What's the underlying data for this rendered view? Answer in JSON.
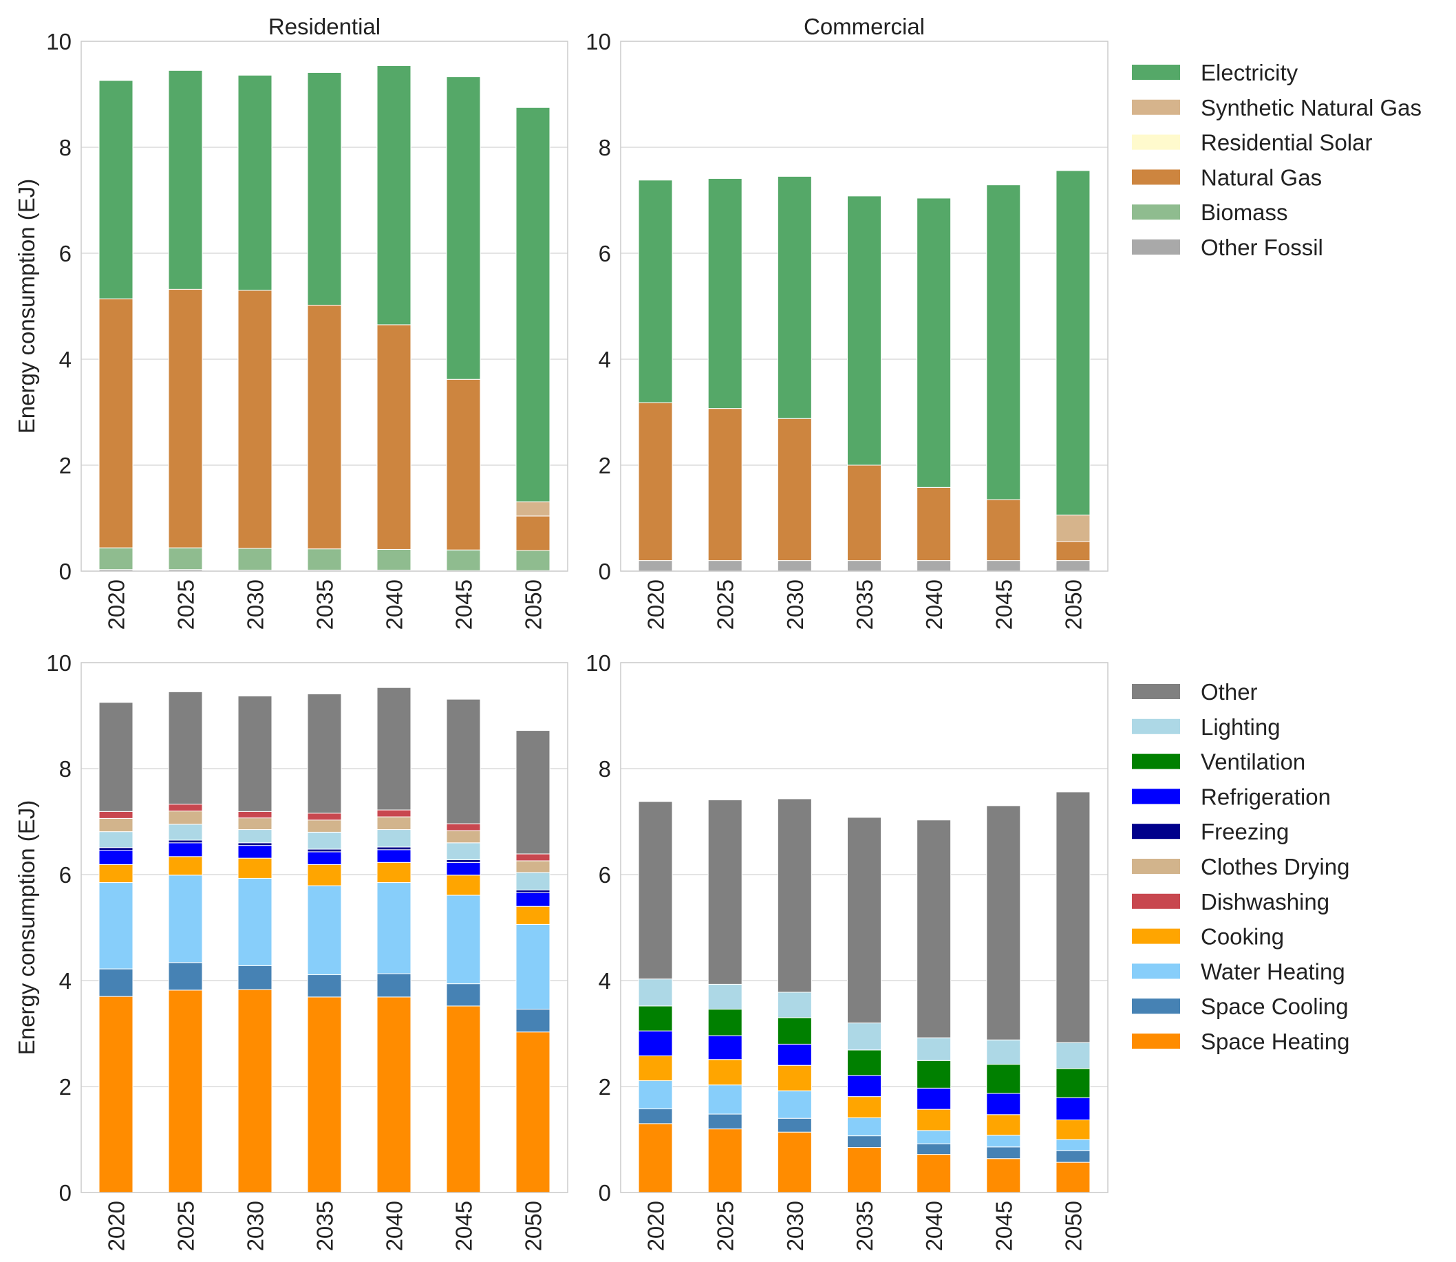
{
  "colors": {
    "Electricity": "#55a868",
    "Synthetic Natural Gas": "#d6b48c",
    "Residential Solar": "#fffacd",
    "Natural Gas": "#cd853f",
    "Biomass": "#8fbc8f",
    "Other Fossil": "#a9a9a9",
    "Other": "#808080",
    "Lighting": "#add8e6",
    "Ventilation": "#008000",
    "Refrigeration": "#0000ff",
    "Freezing": "#00008b",
    "Clothes Drying": "#d2b48c",
    "Dishwashing": "#c8474f",
    "Cooking": "#ffa500",
    "Water Heating": "#87cefa",
    "Space Cooling": "#4682b4",
    "Space Heating": "#ff8c00"
  },
  "legends": [
    {
      "entries": [
        "Electricity",
        "Synthetic Natural Gas",
        "Residential Solar",
        "Natural Gas",
        "Biomass",
        "Other Fossil"
      ]
    },
    {
      "entries": [
        "Other",
        "Lighting",
        "Ventilation",
        "Refrigeration",
        "Freezing",
        "Clothes Drying",
        "Dishwashing",
        "Cooking",
        "Water Heating",
        "Space Cooling",
        "Space Heating"
      ]
    }
  ],
  "chart_data": [
    {
      "type": "bar",
      "stacked": true,
      "title": "Residential",
      "ylabel": "Energy consumption (EJ)",
      "ylim": [
        0,
        10
      ],
      "yticks": [
        "0",
        "2",
        "4",
        "6",
        "8",
        "10"
      ],
      "categories": [
        "2020",
        "2025",
        "2030",
        "2035",
        "2040",
        "2045",
        "2050"
      ],
      "series": [
        {
          "name": "Other Fossil",
          "values": [
            0.03,
            0.03,
            0.02,
            0.02,
            0.02,
            0.01,
            0.01
          ]
        },
        {
          "name": "Biomass",
          "values": [
            0.41,
            0.41,
            0.41,
            0.4,
            0.39,
            0.39,
            0.38
          ]
        },
        {
          "name": "Natural Gas",
          "values": [
            4.7,
            4.88,
            4.87,
            4.6,
            4.24,
            3.22,
            0.65
          ]
        },
        {
          "name": "Residential Solar",
          "values": [
            0.0,
            0.0,
            0.0,
            0.0,
            0.0,
            0.0,
            0.0
          ]
        },
        {
          "name": "Synthetic Natural Gas",
          "values": [
            0.0,
            0.0,
            0.0,
            0.0,
            0.0,
            0.0,
            0.27
          ]
        },
        {
          "name": "Electricity",
          "values": [
            4.12,
            4.13,
            4.06,
            4.39,
            4.89,
            5.71,
            7.44
          ]
        }
      ]
    },
    {
      "type": "bar",
      "stacked": true,
      "title": "Commercial",
      "ylabel": "",
      "ylim": [
        0,
        10
      ],
      "yticks": [
        "0",
        "2",
        "4",
        "6",
        "8",
        "10"
      ],
      "categories": [
        "2020",
        "2025",
        "2030",
        "2035",
        "2040",
        "2045",
        "2050"
      ],
      "series": [
        {
          "name": "Other Fossil",
          "values": [
            0.2,
            0.2,
            0.2,
            0.2,
            0.2,
            0.2,
            0.2
          ]
        },
        {
          "name": "Natural Gas",
          "values": [
            2.98,
            2.87,
            2.68,
            1.8,
            1.38,
            1.15,
            0.36
          ]
        },
        {
          "name": "Synthetic Natural Gas",
          "values": [
            0.0,
            0.0,
            0.0,
            0.0,
            0.0,
            0.0,
            0.5
          ]
        },
        {
          "name": "Electricity",
          "values": [
            4.2,
            4.34,
            4.57,
            5.08,
            5.46,
            5.94,
            6.5
          ]
        }
      ]
    },
    {
      "type": "bar",
      "stacked": true,
      "title": "",
      "ylabel": "Energy consumption (EJ)",
      "ylim": [
        0,
        10
      ],
      "yticks": [
        "0",
        "2",
        "4",
        "6",
        "8",
        "10"
      ],
      "categories": [
        "2020",
        "2025",
        "2030",
        "2035",
        "2040",
        "2045",
        "2050"
      ],
      "series": [
        {
          "name": "Space Heating",
          "values": [
            3.7,
            3.82,
            3.83,
            3.69,
            3.69,
            3.52,
            3.03
          ]
        },
        {
          "name": "Space Cooling",
          "values": [
            0.52,
            0.52,
            0.45,
            0.42,
            0.44,
            0.42,
            0.43
          ]
        },
        {
          "name": "Water Heating",
          "values": [
            1.63,
            1.65,
            1.65,
            1.68,
            1.72,
            1.67,
            1.6
          ]
        },
        {
          "name": "Cooking",
          "values": [
            0.34,
            0.35,
            0.38,
            0.4,
            0.38,
            0.38,
            0.34
          ]
        },
        {
          "name": "Refrigeration",
          "values": [
            0.27,
            0.26,
            0.24,
            0.24,
            0.24,
            0.24,
            0.26
          ]
        },
        {
          "name": "Freezing",
          "values": [
            0.05,
            0.05,
            0.05,
            0.05,
            0.05,
            0.05,
            0.05
          ]
        },
        {
          "name": "Lighting",
          "values": [
            0.3,
            0.3,
            0.25,
            0.32,
            0.33,
            0.32,
            0.33
          ]
        },
        {
          "name": "Clothes Drying",
          "values": [
            0.25,
            0.25,
            0.22,
            0.23,
            0.24,
            0.23,
            0.22
          ]
        },
        {
          "name": "Dishwashing",
          "values": [
            0.13,
            0.13,
            0.12,
            0.13,
            0.13,
            0.13,
            0.13
          ]
        },
        {
          "name": "Other",
          "values": [
            2.06,
            2.12,
            2.18,
            2.25,
            2.31,
            2.35,
            2.33
          ]
        }
      ]
    },
    {
      "type": "bar",
      "stacked": true,
      "title": "",
      "ylabel": "",
      "ylim": [
        0,
        10
      ],
      "yticks": [
        "0",
        "2",
        "4",
        "6",
        "8",
        "10"
      ],
      "categories": [
        "2020",
        "2025",
        "2030",
        "2035",
        "2040",
        "2045",
        "2050"
      ],
      "series": [
        {
          "name": "Space Heating",
          "values": [
            1.3,
            1.2,
            1.14,
            0.85,
            0.72,
            0.64,
            0.57
          ]
        },
        {
          "name": "Space Cooling",
          "values": [
            0.28,
            0.28,
            0.26,
            0.22,
            0.2,
            0.22,
            0.22
          ]
        },
        {
          "name": "Water Heating",
          "values": [
            0.53,
            0.55,
            0.52,
            0.34,
            0.25,
            0.22,
            0.21
          ]
        },
        {
          "name": "Cooking",
          "values": [
            0.47,
            0.48,
            0.48,
            0.4,
            0.4,
            0.39,
            0.37
          ]
        },
        {
          "name": "Refrigeration",
          "values": [
            0.47,
            0.45,
            0.4,
            0.4,
            0.4,
            0.4,
            0.42
          ]
        },
        {
          "name": "Ventilation",
          "values": [
            0.47,
            0.5,
            0.5,
            0.48,
            0.52,
            0.55,
            0.55
          ]
        },
        {
          "name": "Lighting",
          "values": [
            0.51,
            0.47,
            0.48,
            0.51,
            0.43,
            0.46,
            0.49
          ]
        },
        {
          "name": "Other",
          "values": [
            3.35,
            3.48,
            3.65,
            3.88,
            4.11,
            4.42,
            4.73
          ]
        }
      ]
    }
  ]
}
